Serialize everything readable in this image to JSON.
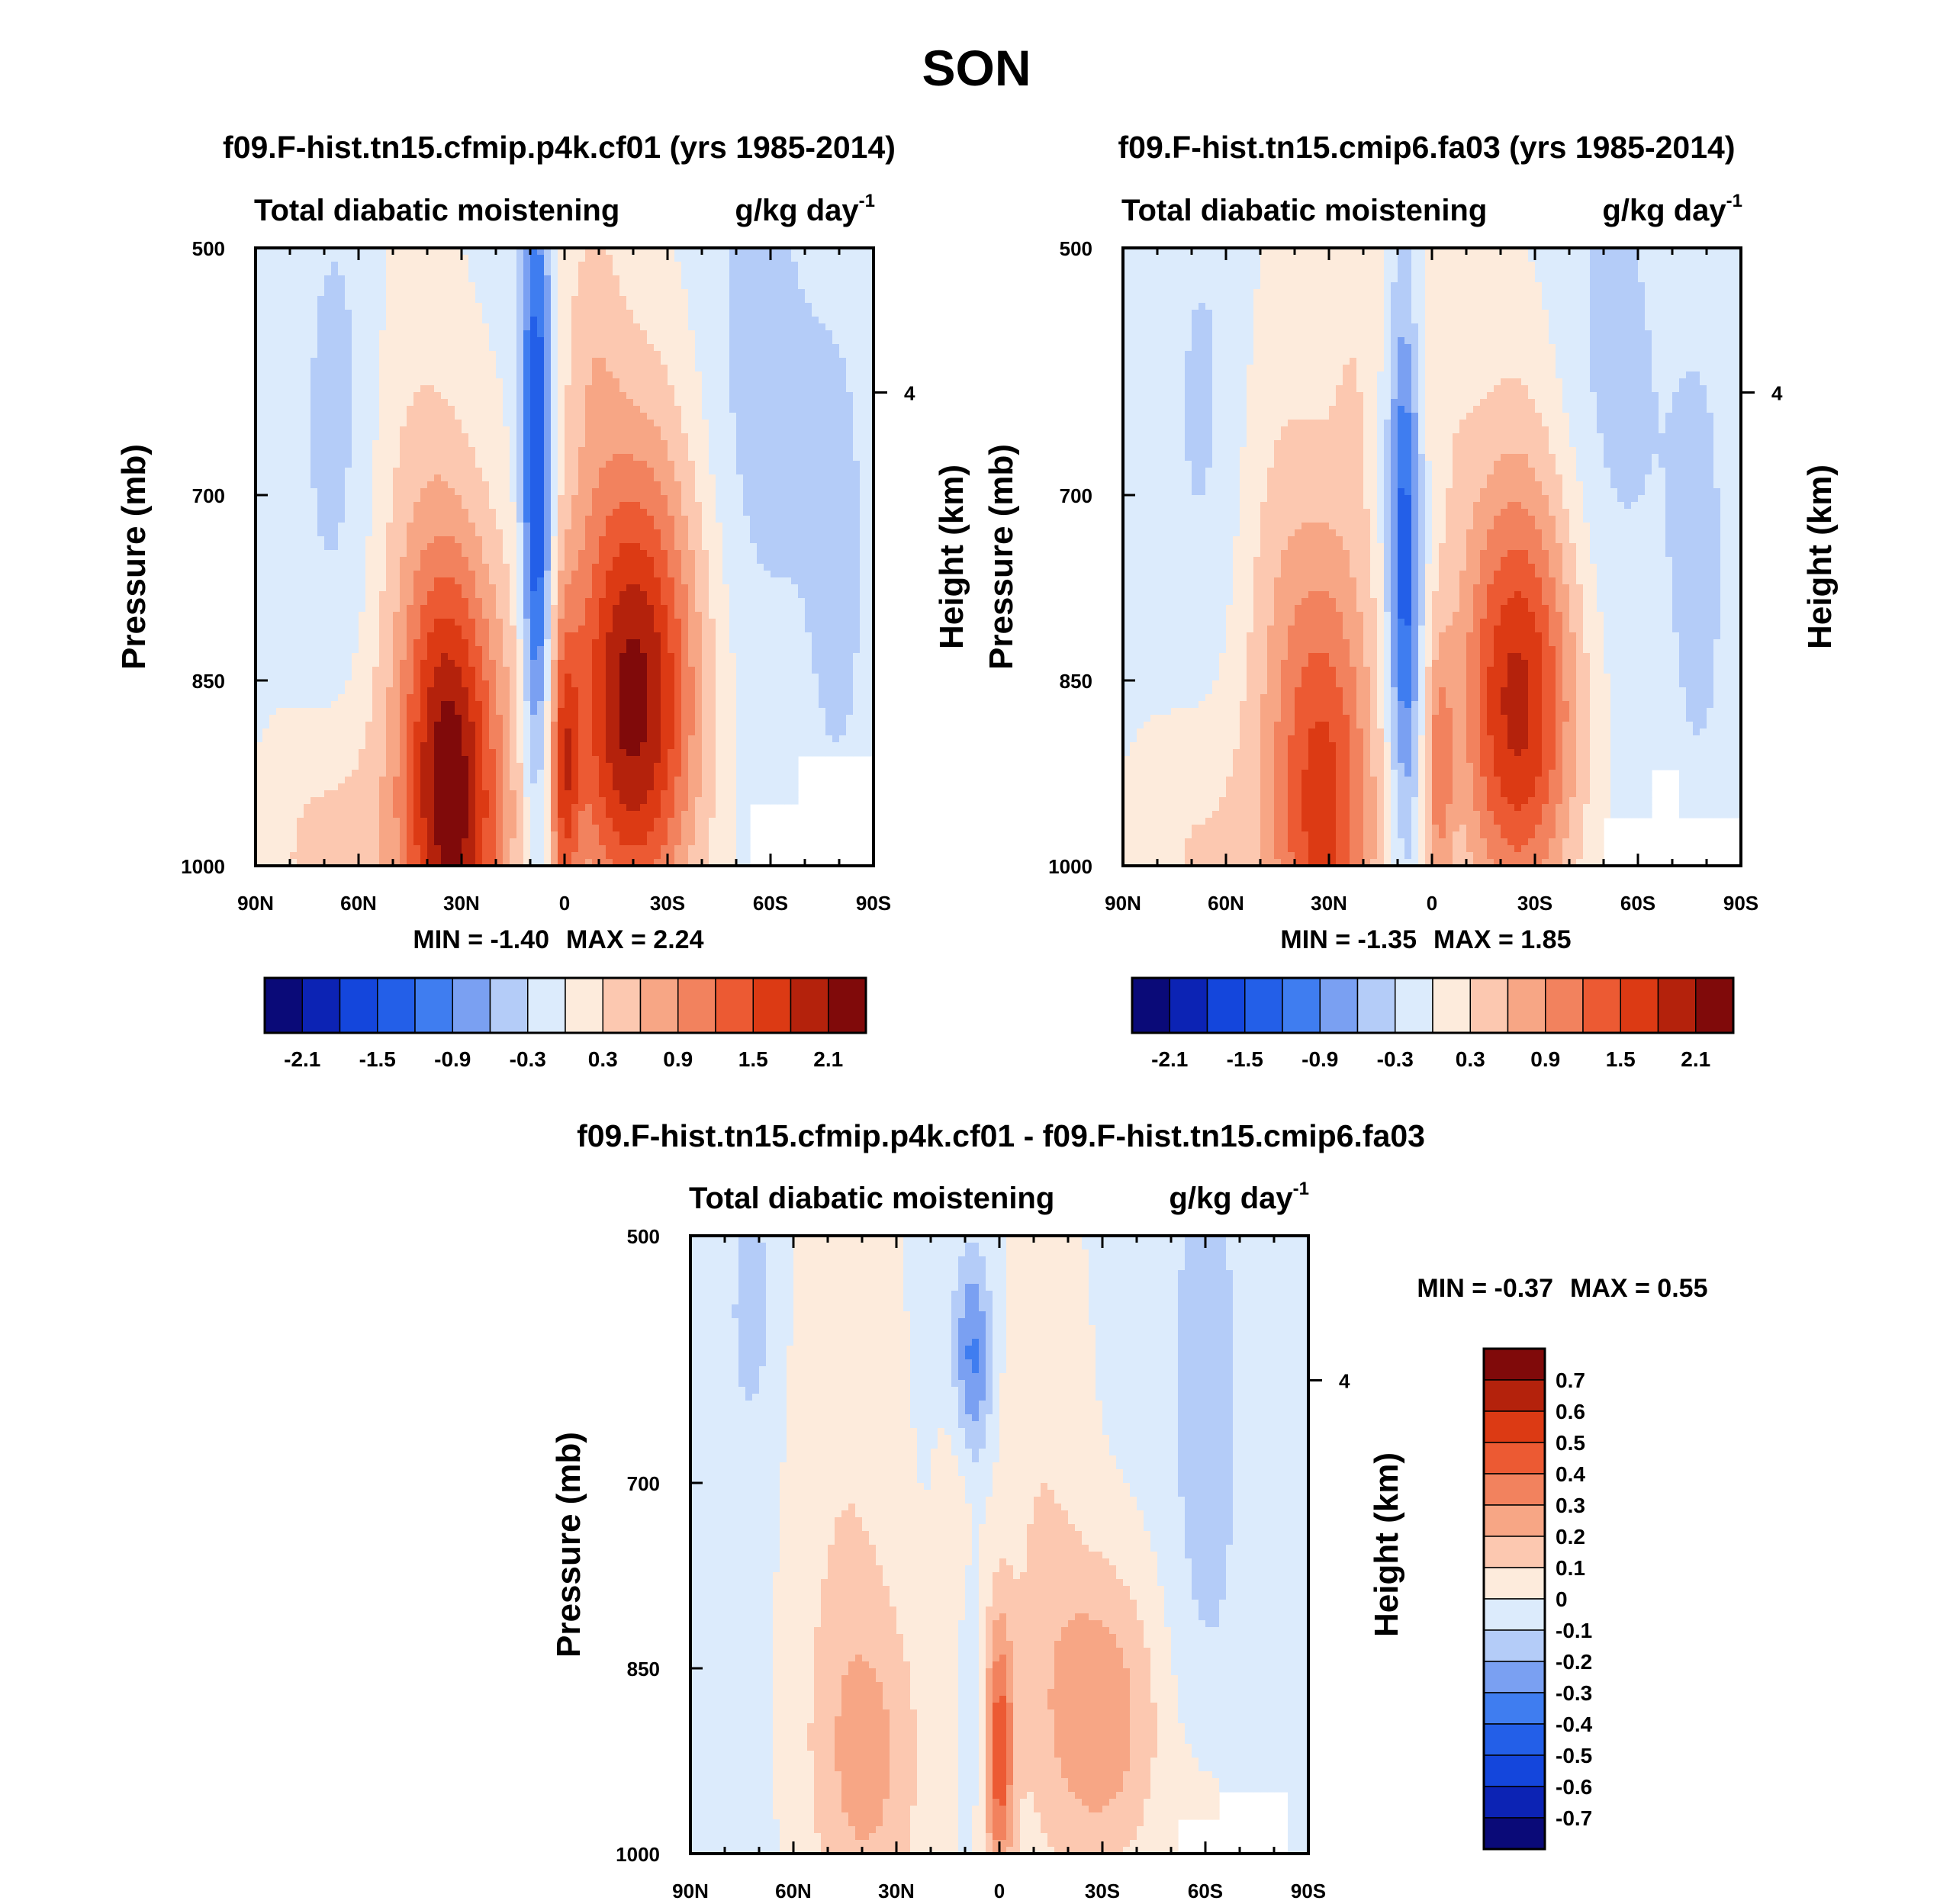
{
  "figure": {
    "title": "SON"
  },
  "colors": {
    "scale": [
      "#0a0a78",
      "#0c23b4",
      "#1446dc",
      "#235fe8",
      "#3f7df0",
      "#7aa0f2",
      "#b4ccf8",
      "#dcebfc",
      "#fdebdc",
      "#fcc8b0",
      "#f7a685",
      "#f2825e",
      "#ec5a33",
      "#dc3a14",
      "#b4220c",
      "#800a0a"
    ]
  },
  "chart_data": [
    {
      "type": "heatmap",
      "panel": "left",
      "title": "f09.F-hist.tn15.cfmip.p4k.cf01 (yrs 1985-2014)",
      "left_label": "Total diabatic moistening",
      "units_label": "g/kg day",
      "units_exponent": "-1",
      "ylabel": "Pressure (mb)",
      "ylabel_right": "Height (km)",
      "x_ticks": [
        "90N",
        "60N",
        "30N",
        "0",
        "30S",
        "60S",
        "90S"
      ],
      "x_tick_values": [
        90,
        60,
        30,
        0,
        -30,
        -60,
        -90
      ],
      "xlim": [
        90,
        -90
      ],
      "y_ticks": [
        500,
        700,
        850,
        1000
      ],
      "ylim": [
        500,
        1000
      ],
      "y_right_ticks": [
        {
          "label": "4",
          "pressure": 617
        }
      ],
      "min_label": "MIN =  -1.40",
      "max_label": "MAX =   2.24",
      "min": -1.4,
      "max": 2.24,
      "colorbar_labels": [
        "-2.1",
        "-1.5",
        "-0.9",
        "-0.3",
        "0.3",
        "0.9",
        "1.5",
        "2.1"
      ],
      "levels": [
        -2.1,
        -1.8,
        -1.5,
        -1.2,
        -0.9,
        -0.6,
        -0.3,
        0,
        0.3,
        0.6,
        0.9,
        1.2,
        1.5,
        1.8,
        2.1
      ],
      "field": {
        "background": -0.1,
        "blobs": [
          {
            "lat": 65,
            "p": 650,
            "slat": 9,
            "sp": 160,
            "amp": -0.35
          },
          {
            "lat": -55,
            "p": 620,
            "slat": 12,
            "sp": 170,
            "amp": -0.35
          },
          {
            "lat": -80,
            "p": 760,
            "slat": 8,
            "sp": 190,
            "amp": -0.25
          },
          {
            "lat": 8,
            "p": 720,
            "slat": 3,
            "sp": 170,
            "amp": -1.6
          },
          {
            "lat": 10,
            "p": 520,
            "slat": 4,
            "sp": 130,
            "amp": -0.25
          },
          {
            "lat": 31,
            "p": 960,
            "slat": 11,
            "sp": 150,
            "amp": 1.9
          },
          {
            "lat": 36,
            "p": 900,
            "slat": 7,
            "sp": 110,
            "amp": 0.45
          },
          {
            "lat": -20,
            "p": 880,
            "slat": 13,
            "sp": 130,
            "amp": 1.9
          },
          {
            "lat": -20,
            "p": 760,
            "slat": 16,
            "sp": 170,
            "amp": 0.55
          },
          {
            "lat": 0,
            "p": 930,
            "slat": 3,
            "sp": 90,
            "amp": 1.2
          },
          {
            "lat": 70,
            "p": 990,
            "slat": 14,
            "sp": 80,
            "amp": 0.5
          },
          {
            "lat": 45,
            "p": 780,
            "slat": 12,
            "sp": 210,
            "amp": 0.45
          },
          {
            "lat": -8,
            "p": 560,
            "slat": 6,
            "sp": 90,
            "amp": 0.35
          }
        ],
        "masks": [
          {
            "lat_from": -55,
            "lat_to": -68,
            "p_from": 950,
            "p_to": 1000
          },
          {
            "lat_from": -68,
            "lat_to": -90,
            "p_from": 910,
            "p_to": 1000
          }
        ]
      }
    },
    {
      "type": "heatmap",
      "panel": "right",
      "title": "f09.F-hist.tn15.cmip6.fa03 (yrs 1985-2014)",
      "left_label": "Total diabatic moistening",
      "units_label": "g/kg day",
      "units_exponent": "-1",
      "ylabel": "Pressure (mb)",
      "ylabel_right": "Height (km)",
      "x_ticks": [
        "90N",
        "60N",
        "30N",
        "0",
        "30S",
        "60S",
        "90S"
      ],
      "x_tick_values": [
        90,
        60,
        30,
        0,
        -30,
        -60,
        -90
      ],
      "xlim": [
        90,
        -90
      ],
      "y_ticks": [
        500,
        700,
        850,
        1000
      ],
      "ylim": [
        500,
        1000
      ],
      "y_right_ticks": [
        {
          "label": "4",
          "pressure": 617
        }
      ],
      "min_label": "MIN =  -1.35",
      "max_label": "MAX =   1.85",
      "min": -1.35,
      "max": 1.85,
      "colorbar_labels": [
        "-2.1",
        "-1.5",
        "-0.9",
        "-0.3",
        "0.3",
        "0.9",
        "1.5",
        "2.1"
      ],
      "levels": [
        -2.1,
        -1.8,
        -1.5,
        -1.2,
        -0.9,
        -0.6,
        -0.3,
        0,
        0.3,
        0.6,
        0.9,
        1.2,
        1.5,
        1.8,
        2.1
      ],
      "field": {
        "background": -0.1,
        "blobs": [
          {
            "lat": 65,
            "p": 640,
            "slat": 9,
            "sp": 150,
            "amp": -0.3
          },
          {
            "lat": -50,
            "p": 620,
            "slat": 12,
            "sp": 170,
            "amp": -0.35
          },
          {
            "lat": -78,
            "p": 760,
            "slat": 8,
            "sp": 190,
            "amp": -0.25
          },
          {
            "lat": 8,
            "p": 760,
            "slat": 3.5,
            "sp": 150,
            "amp": -1.4
          },
          {
            "lat": 31,
            "p": 960,
            "slat": 11,
            "sp": 150,
            "amp": 1.6
          },
          {
            "lat": -25,
            "p": 880,
            "slat": 12,
            "sp": 120,
            "amp": 1.6
          },
          {
            "lat": -25,
            "p": 770,
            "slat": 15,
            "sp": 170,
            "amp": 0.5
          },
          {
            "lat": -2,
            "p": 930,
            "slat": 3,
            "sp": 80,
            "amp": 0.9
          },
          {
            "lat": 45,
            "p": 780,
            "slat": 12,
            "sp": 200,
            "amp": 0.4
          },
          {
            "lat": 22,
            "p": 580,
            "slat": 6,
            "sp": 120,
            "amp": 0.3
          },
          {
            "lat": -2,
            "p": 560,
            "slat": 6,
            "sp": 90,
            "amp": 0.3
          },
          {
            "lat": 70,
            "p": 990,
            "slat": 14,
            "sp": 80,
            "amp": 0.4
          }
        ],
        "masks": [
          {
            "lat_from": -50,
            "lat_to": -90,
            "p_from": 960,
            "p_to": 1000
          },
          {
            "lat_from": -64,
            "lat_to": -72,
            "p_from": 920,
            "p_to": 1000
          }
        ]
      }
    },
    {
      "type": "heatmap",
      "panel": "difference",
      "title": "f09.F-hist.tn15.cfmip.p4k.cf01 - f09.F-hist.tn15.cmip6.fa03",
      "left_label": "Total diabatic moistening",
      "units_label": "g/kg day",
      "units_exponent": "-1",
      "ylabel": "Pressure (mb)",
      "ylabel_right": "Height (km)",
      "x_ticks": [
        "90N",
        "60N",
        "30N",
        "0",
        "30S",
        "60S",
        "90S"
      ],
      "x_tick_values": [
        90,
        60,
        30,
        0,
        -30,
        -60,
        -90
      ],
      "xlim": [
        90,
        -90
      ],
      "y_ticks": [
        500,
        700,
        850,
        1000
      ],
      "ylim": [
        500,
        1000
      ],
      "y_right_ticks": [
        {
          "label": "4",
          "pressure": 617
        }
      ],
      "min_label": "MIN =  -0.37",
      "max_label": "MAX =   0.55",
      "min": -0.37,
      "max": 0.55,
      "colorbar_labels": [
        "0.7",
        "0.6",
        "0.5",
        "0.4",
        "0.3",
        "0.2",
        "0.1",
        "0",
        "-0.1",
        "-0.2",
        "-0.3",
        "-0.4",
        "-0.5",
        "-0.6",
        "-0.7"
      ],
      "levels": [
        -0.7,
        -0.6,
        -0.5,
        -0.4,
        -0.3,
        -0.2,
        -0.1,
        0,
        0.1,
        0.2,
        0.3,
        0.4,
        0.5,
        0.6,
        0.7
      ],
      "field": {
        "background": -0.03,
        "blobs": [
          {
            "lat": 72,
            "p": 560,
            "slat": 5,
            "sp": 80,
            "amp": -0.12
          },
          {
            "lat": -60,
            "p": 640,
            "slat": 8,
            "sp": 200,
            "amp": -0.12
          },
          {
            "lat": 8,
            "p": 600,
            "slat": 4,
            "sp": 60,
            "amp": -0.33
          },
          {
            "lat": 9,
            "p": 850,
            "slat": 2.5,
            "sp": 70,
            "amp": -0.15
          },
          {
            "lat": 0,
            "p": 920,
            "slat": 3,
            "sp": 80,
            "amp": 0.45
          },
          {
            "lat": -30,
            "p": 890,
            "slat": 12,
            "sp": 90,
            "amp": 0.3
          },
          {
            "lat": 38,
            "p": 930,
            "slat": 12,
            "sp": 100,
            "amp": 0.22
          },
          {
            "lat": 45,
            "p": 700,
            "slat": 12,
            "sp": 230,
            "amp": 0.11
          },
          {
            "lat": -12,
            "p": 740,
            "slat": 10,
            "sp": 220,
            "amp": 0.12
          },
          {
            "lat": 12,
            "p": 760,
            "slat": 4,
            "sp": 120,
            "amp": 0.12
          },
          {
            "lat": -60,
            "p": 980,
            "slat": 8,
            "sp": 60,
            "amp": 0.08
          }
        ],
        "masks": [
          {
            "lat_from": -52,
            "lat_to": -65,
            "p_from": 970,
            "p_to": 1000
          },
          {
            "lat_from": -65,
            "lat_to": -83,
            "p_from": 950,
            "p_to": 1000
          }
        ]
      }
    }
  ]
}
